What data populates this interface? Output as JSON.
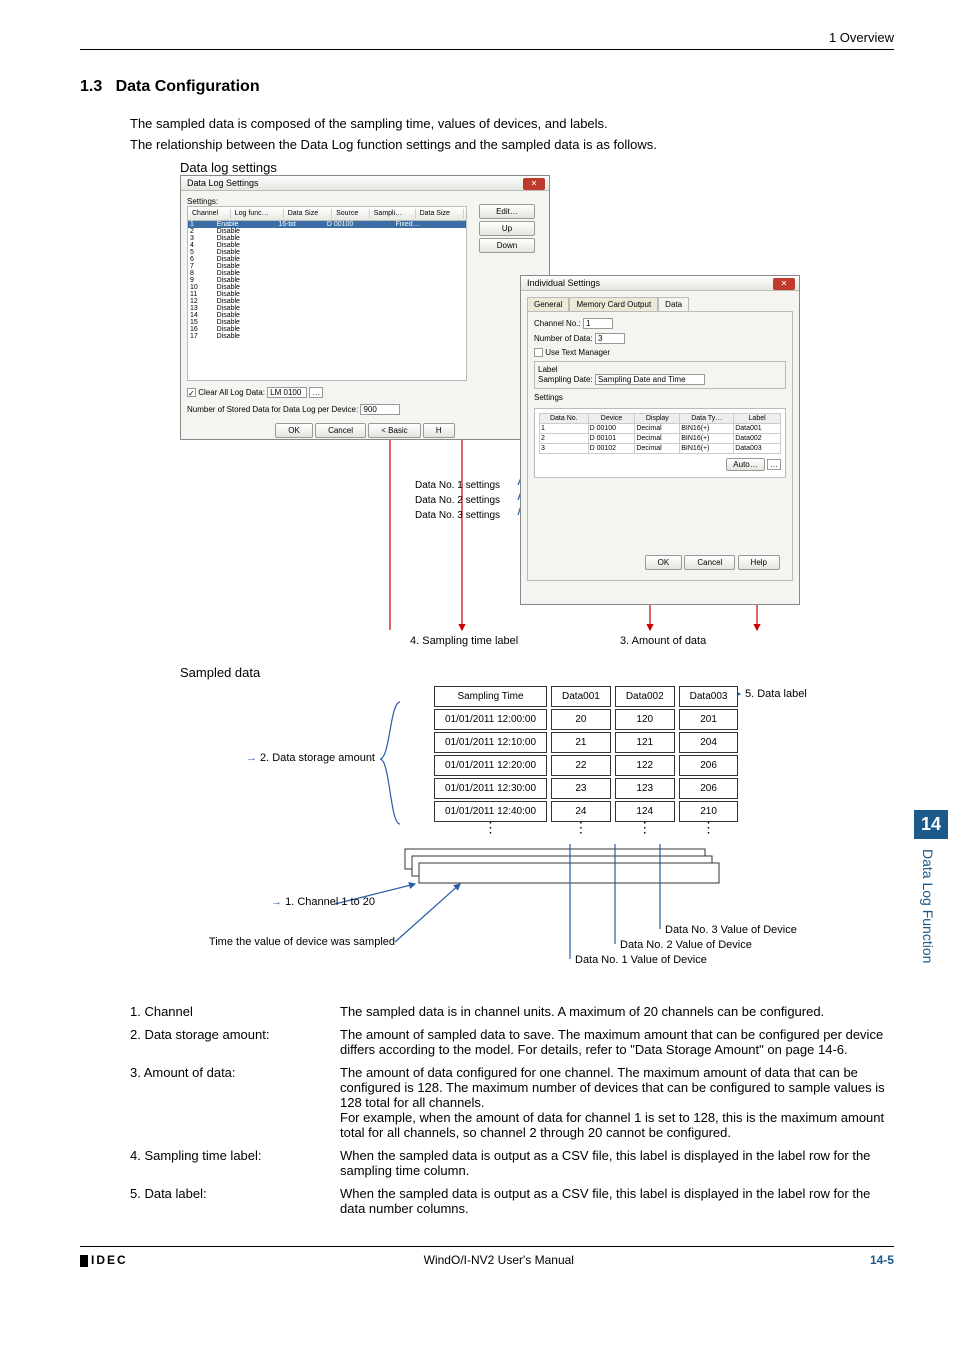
{
  "header": {
    "chapter": "1 Overview"
  },
  "section": {
    "number": "1.3",
    "title": "Data Configuration"
  },
  "intro": {
    "l1": "The sampled data is composed of the sampling time, values of devices, and labels.",
    "l2": "The relationship between the Data Log function settings and the sampled data is as follows."
  },
  "fig": {
    "top_caption": "Data log settings",
    "sampled_caption": "Sampled data"
  },
  "dlg1": {
    "title": "Data Log Settings",
    "settings_label": "Settings:",
    "cols": [
      "Channel",
      "Log func…",
      "Data Size",
      "Source",
      "Sampli…",
      "Data Size"
    ],
    "rows": [
      [
        "1",
        "Enable",
        "16-bit",
        "D 00100",
        "Fixed…",
        ""
      ],
      [
        "2",
        "Disable",
        "",
        "",
        "",
        ""
      ],
      [
        "3",
        "Disable",
        "",
        "",
        "",
        ""
      ],
      [
        "4",
        "Disable",
        "",
        "",
        "",
        ""
      ],
      [
        "5",
        "Disable",
        "",
        "",
        "",
        ""
      ],
      [
        "6",
        "Disable",
        "",
        "",
        "",
        ""
      ],
      [
        "7",
        "Disable",
        "",
        "",
        "",
        ""
      ],
      [
        "8",
        "Disable",
        "",
        "",
        "",
        ""
      ],
      [
        "9",
        "Disable",
        "",
        "",
        "",
        ""
      ],
      [
        "10",
        "Disable",
        "",
        "",
        "",
        ""
      ],
      [
        "11",
        "Disable",
        "",
        "",
        "",
        ""
      ],
      [
        "12",
        "Disable",
        "",
        "",
        "",
        ""
      ],
      [
        "13",
        "Disable",
        "",
        "",
        "",
        ""
      ],
      [
        "14",
        "Disable",
        "",
        "",
        "",
        ""
      ],
      [
        "15",
        "Disable",
        "",
        "",
        "",
        ""
      ],
      [
        "16",
        "Disable",
        "",
        "",
        "",
        ""
      ],
      [
        "17",
        "Disable",
        "",
        "",
        "",
        ""
      ]
    ],
    "btn_edit": "Edit…",
    "btn_up": "Up",
    "btn_down": "Down",
    "clear_label": "Clear All Log Data:",
    "clear_val": "LM 0100",
    "stored_label": "Number of Stored Data for Data Log per Device:",
    "stored_val": "900",
    "ok": "OK",
    "cancel": "Cancel",
    "basic": "< Basic"
  },
  "dlg2": {
    "title": "Individual Settings",
    "tabs": [
      "General",
      "Memory Card Output",
      "Data"
    ],
    "channel_label": "Channel No.:",
    "channel_val": "1",
    "numdata_label": "Number of Data:",
    "numdata_val": "3",
    "use_tm": "Use Text Manager",
    "label_label": "Label",
    "sampdate_label": "Sampling Date:",
    "sampdate_val": "Sampling Date and Time",
    "settings": "Settings",
    "cols": [
      "Data No.",
      "Device",
      "Display",
      "Data Ty…",
      "Label"
    ],
    "rows": [
      [
        "1",
        "D 00100",
        "Decimal",
        "BIN16(+)",
        "Data001"
      ],
      [
        "2",
        "D 00101",
        "Decimal",
        "BIN16(+)",
        "Data002"
      ],
      [
        "3",
        "D 00102",
        "Decimal",
        "BIN16(+)",
        "Data003"
      ]
    ],
    "auto": "Auto…",
    "ok": "OK",
    "cancel": "Cancel",
    "help": "Help"
  },
  "ann": {
    "d1": "Data No. 1 settings",
    "d2": "Data No. 2 settings",
    "d3": "Data No. 3 settings",
    "samp_time": "4. Sampling time label",
    "amount": "3. Amount of data",
    "datalabel": "5. Data label",
    "storage": "2. Data storage amount",
    "channel": "1. Channel 1 to 20",
    "time_sampled": "Time the value of device was sampled",
    "v1": "Data No. 1 Value of Device",
    "v2": "Data No. 2 Value of Device",
    "v3": "Data No. 3 Value of Device"
  },
  "stable": {
    "headers": [
      "Sampling Time",
      "Data001",
      "Data002",
      "Data003"
    ],
    "rows": [
      [
        "01/01/2011 12:00:00",
        "20",
        "120",
        "201"
      ],
      [
        "01/01/2011 12:10:00",
        "21",
        "121",
        "204"
      ],
      [
        "01/01/2011 12:20:00",
        "22",
        "122",
        "206"
      ],
      [
        "01/01/2011 12:30:00",
        "23",
        "123",
        "206"
      ],
      [
        "01/01/2011 12:40:00",
        "24",
        "124",
        "210"
      ]
    ]
  },
  "defs": [
    {
      "k": "1. Channel",
      "v": "The sampled data is in channel units. A maximum of 20 channels can be configured."
    },
    {
      "k": "2. Data storage amount:",
      "v": "The amount of sampled data to save. The maximum amount that can be configured per device differs according to the model. For details, refer to \"Data Storage Amount\" on page 14-6."
    },
    {
      "k": "3. Amount of data:",
      "v": "The amount of data configured for one channel. The maximum amount of data that can be configured is 128. The maximum number of devices that can be configured to sample values is 128 total for all channels.\nFor example, when the amount of data for channel 1 is set to 128, this is the maximum amount total for all channels, so channel 2 through 20 cannot be configured."
    },
    {
      "k": "4. Sampling time label:",
      "v": "When the sampled data is output as a CSV file, this label is displayed in the label row for the sampling time column."
    },
    {
      "k": "5. Data label:",
      "v": "When the sampled data is output as a CSV file, this label is displayed in the label row for the data number columns."
    }
  ],
  "sidetab": {
    "num": "14",
    "txt": "Data Log Function"
  },
  "footer": {
    "logo": "IDEC",
    "center": "WindO/I-NV2 User's Manual",
    "page": "14-5"
  }
}
